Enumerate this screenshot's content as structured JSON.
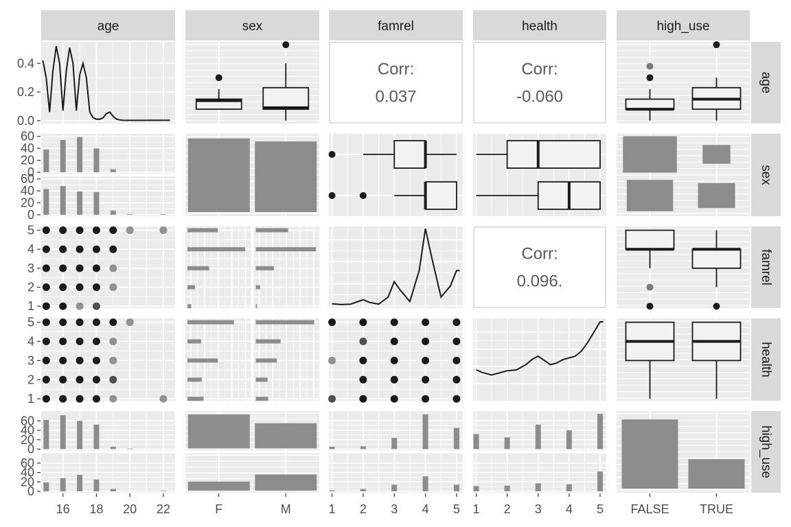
{
  "chart_data": {
    "type": "scatter",
    "title": "",
    "variables": [
      "age",
      "sex",
      "famrel",
      "health",
      "high_use"
    ],
    "column_strips": [
      "age",
      "sex",
      "famrel",
      "health",
      "high_use"
    ],
    "row_strips": [
      "age",
      "sex",
      "famrel",
      "health",
      "high_use"
    ],
    "axes": {
      "age": {
        "range": [
          14.7,
          22.7
        ],
        "ticks": [
          "16",
          "18",
          "20",
          "22"
        ],
        "density_ticks": [
          "0.0",
          "0.2",
          "0.4"
        ],
        "density_range": [
          -0.02,
          0.55
        ]
      },
      "sex": {
        "categories": [
          "F",
          "M"
        ]
      },
      "famrel": {
        "range": [
          0.9,
          5.2
        ],
        "ticks": [
          "1",
          "2",
          "3",
          "4",
          "5"
        ]
      },
      "health": {
        "range": [
          0.9,
          5.2
        ],
        "ticks": [
          "1",
          "2",
          "3",
          "4",
          "5"
        ]
      },
      "high_use": {
        "categories": [
          "FALSE",
          "TRUE"
        ]
      },
      "count_ticks_sex": [
        "0",
        "20",
        "40",
        "60"
      ],
      "count_ticks_high_use": [
        "0",
        "20",
        "40",
        "60"
      ]
    },
    "correlations": [
      {
        "row": "age",
        "col": "famrel",
        "label": "Corr:",
        "value": "0.037"
      },
      {
        "row": "age",
        "col": "health",
        "label": "Corr:",
        "value": "-0.060"
      },
      {
        "row": "famrel",
        "col": "health",
        "label": "Corr:",
        "value": "0.096."
      }
    ],
    "age_density": {
      "x": [
        14.8,
        15,
        15.2,
        15.4,
        15.6,
        15.8,
        16,
        16.2,
        16.4,
        16.6,
        16.8,
        17,
        17.2,
        17.4,
        17.6,
        17.8,
        18,
        18.2,
        18.4,
        18.6,
        18.8,
        19,
        19.2,
        19.4,
        19.6,
        19.8,
        20,
        20.4,
        20.8,
        21.2,
        21.6,
        22,
        22.4
      ],
      "y": [
        0.42,
        0.3,
        0.06,
        0.35,
        0.52,
        0.4,
        0.07,
        0.35,
        0.51,
        0.4,
        0.07,
        0.32,
        0.4,
        0.3,
        0.06,
        0.02,
        0.01,
        0.01,
        0.02,
        0.05,
        0.06,
        0.03,
        0.01,
        0.005,
        0.003,
        0.002,
        0.002,
        0.002,
        0.002,
        0.003,
        0.003,
        0.003,
        0.003
      ]
    },
    "famrel_density": {
      "x": [
        1,
        1.3,
        1.6,
        1.8,
        2,
        2.2,
        2.5,
        2.8,
        3,
        3.2,
        3.5,
        3.8,
        4,
        4.2,
        4.5,
        4.8,
        5,
        5.1
      ],
      "y": [
        0.1,
        0.06,
        0.08,
        0.18,
        0.28,
        0.16,
        0.08,
        0.4,
        1.1,
        0.7,
        0.2,
        1.6,
        3.5,
        2.2,
        0.4,
        0.9,
        1.6,
        1.6
      ]
    },
    "health_density": {
      "x": [
        1,
        1.2,
        1.5,
        1.8,
        2,
        2.3,
        2.6,
        2.8,
        3,
        3.2,
        3.4,
        3.6,
        3.8,
        4,
        4.2,
        4.4,
        4.6,
        4.8,
        5,
        5.1
      ],
      "y": [
        0.8,
        0.65,
        0.5,
        0.65,
        0.75,
        0.8,
        1.1,
        1.4,
        1.6,
        1.35,
        1.1,
        1.2,
        1.4,
        1.5,
        1.6,
        1.9,
        2.4,
        3.0,
        3.6,
        3.6
      ]
    },
    "age_by_sex_hist": {
      "F": {
        "x": [
          15,
          16,
          17,
          18,
          19,
          20
        ],
        "counts": [
          38,
          54,
          59,
          40,
          5,
          0
        ]
      },
      "M": {
        "x": [
          15,
          16,
          17,
          18,
          19,
          20,
          22
        ],
        "counts": [
          43,
          48,
          39,
          38,
          7,
          1,
          1
        ]
      }
    },
    "age_by_high_use_hist": {
      "FALSE": {
        "x": [
          15,
          16,
          17,
          18,
          19,
          20
        ],
        "counts": [
          62,
          72,
          60,
          52,
          5,
          1
        ]
      },
      "TRUE": {
        "x": [
          15,
          16,
          17,
          18,
          19,
          22
        ],
        "counts": [
          19,
          28,
          35,
          25,
          5,
          1
        ]
      }
    },
    "famrel_by_high_use_hist": {
      "FALSE": {
        "x": [
          1,
          2,
          3,
          4,
          5
        ],
        "counts": [
          5,
          6,
          24,
          74,
          45
        ]
      },
      "TRUE": {
        "x": [
          1,
          2,
          3,
          4,
          5
        ],
        "counts": [
          2,
          5,
          14,
          32,
          14
        ]
      }
    },
    "health_by_high_use_hist": {
      "FALSE": {
        "x": [
          1,
          2,
          3,
          4,
          5
        ],
        "counts": [
          32,
          25,
          52,
          40,
          75
        ]
      },
      "TRUE": {
        "x": [
          1,
          2,
          3,
          4,
          5
        ],
        "counts": [
          11,
          12,
          17,
          15,
          42
        ]
      }
    },
    "sex_counts": {
      "F": 195,
      "M": 187
    },
    "sex_by_high_use": {
      "F": {
        "FALSE": 154,
        "TRUE": 41
      },
      "M": {
        "FALSE": 114,
        "TRUE": 73
      }
    },
    "high_use_counts": {
      "FALSE": 268,
      "TRUE": 114
    },
    "famrel_by_sex_counts": {
      "F": [
        6,
        12,
        35,
        93,
        49
      ],
      "M": [
        2,
        7,
        29,
        97,
        52
      ]
    },
    "health_by_sex_counts": {
      "F": [
        26,
        23,
        49,
        22,
        75
      ],
      "M": [
        20,
        19,
        34,
        40,
        94
      ]
    },
    "age_box_by_sex": {
      "F": {
        "lower": 0.08,
        "q1": 0.08,
        "median": 0.14,
        "q3": 0.15,
        "upper": 0.22,
        "outliers": [
          0.3
        ]
      },
      "M": {
        "lower": 0.0,
        "q1": 0.08,
        "median": 0.09,
        "q3": 0.23,
        "upper": 0.4,
        "outliers": [
          0.53
        ]
      }
    },
    "age_box_by_high_use": {
      "FALSE": {
        "lower": 0.0,
        "q1": 0.08,
        "median": 0.08,
        "q3": 0.15,
        "upper": 0.22,
        "outliers": [
          0.3,
          0.38
        ]
      },
      "TRUE": {
        "lower": 0.0,
        "q1": 0.08,
        "median": 0.15,
        "q3": 0.23,
        "upper": 0.3,
        "outliers": [
          0.53
        ]
      }
    },
    "famrel_box_by_sex": {
      "F": {
        "lower": 2,
        "q1": 3,
        "median": 4,
        "q3": 4,
        "upper": 5,
        "outliers": [
          1
        ]
      },
      "M": {
        "lower": 3,
        "q1": 4,
        "median": 4,
        "q3": 5,
        "upper": 5,
        "outliers": [
          1,
          2
        ]
      }
    },
    "health_box_by_sex": {
      "F": {
        "lower": 1,
        "q1": 2,
        "median": 3,
        "q3": 5,
        "upper": 5,
        "outliers": []
      },
      "M": {
        "lower": 1,
        "q1": 3,
        "median": 4,
        "q3": 5,
        "upper": 5,
        "outliers": []
      }
    },
    "famrel_box_by_high_use": {
      "FALSE": {
        "lower": 3,
        "q1": 4,
        "median": 4,
        "q3": 5,
        "upper": 5,
        "outliers": [
          1,
          2
        ]
      },
      "TRUE": {
        "lower": 2,
        "q1": 3,
        "median": 4,
        "q3": 4,
        "upper": 5,
        "outliers": [
          1
        ]
      }
    },
    "health_box_by_high_use": {
      "FALSE": {
        "lower": 1,
        "q1": 3,
        "median": 4,
        "q3": 5,
        "upper": 5,
        "outliers": []
      },
      "TRUE": {
        "lower": 1,
        "q1": 3,
        "median": 4,
        "q3": 5,
        "upper": 5,
        "outliers": []
      }
    },
    "famrel_vs_age_points": [
      {
        "x": 15,
        "y": 1,
        "n": 3
      },
      {
        "x": 16,
        "y": 1,
        "n": 3
      },
      {
        "x": 17,
        "y": 1,
        "n": 1
      },
      {
        "x": 18,
        "y": 1,
        "n": 2
      },
      {
        "x": 15,
        "y": 2,
        "n": 3
      },
      {
        "x": 16,
        "y": 2,
        "n": 3
      },
      {
        "x": 17,
        "y": 2,
        "n": 4
      },
      {
        "x": 18,
        "y": 2,
        "n": 4
      },
      {
        "x": 19,
        "y": 2,
        "n": 1
      },
      {
        "x": 15,
        "y": 3,
        "n": 9
      },
      {
        "x": 16,
        "y": 3,
        "n": 15
      },
      {
        "x": 17,
        "y": 3,
        "n": 17
      },
      {
        "x": 18,
        "y": 3,
        "n": 17
      },
      {
        "x": 19,
        "y": 3,
        "n": 1
      },
      {
        "x": 15,
        "y": 4,
        "n": 40
      },
      {
        "x": 16,
        "y": 4,
        "n": 50
      },
      {
        "x": 17,
        "y": 4,
        "n": 48
      },
      {
        "x": 18,
        "y": 4,
        "n": 40
      },
      {
        "x": 19,
        "y": 4,
        "n": 3
      },
      {
        "x": 15,
        "y": 5,
        "n": 26
      },
      {
        "x": 16,
        "y": 5,
        "n": 29
      },
      {
        "x": 17,
        "y": 5,
        "n": 25
      },
      {
        "x": 18,
        "y": 5,
        "n": 15
      },
      {
        "x": 19,
        "y": 5,
        "n": 5
      },
      {
        "x": 20,
        "y": 5,
        "n": 1
      },
      {
        "x": 22,
        "y": 5,
        "n": 1
      }
    ],
    "health_vs_age_points": [
      {
        "x": 15,
        "y": 1,
        "n": 11
      },
      {
        "x": 16,
        "y": 1,
        "n": 12
      },
      {
        "x": 17,
        "y": 1,
        "n": 13
      },
      {
        "x": 18,
        "y": 1,
        "n": 9
      },
      {
        "x": 19,
        "y": 1,
        "n": 1
      },
      {
        "x": 22,
        "y": 1,
        "n": 1
      },
      {
        "x": 15,
        "y": 2,
        "n": 8
      },
      {
        "x": 16,
        "y": 2,
        "n": 11
      },
      {
        "x": 17,
        "y": 2,
        "n": 12
      },
      {
        "x": 18,
        "y": 2,
        "n": 10
      },
      {
        "x": 19,
        "y": 2,
        "n": 2
      },
      {
        "x": 15,
        "y": 3,
        "n": 17
      },
      {
        "x": 16,
        "y": 3,
        "n": 22
      },
      {
        "x": 17,
        "y": 3,
        "n": 23
      },
      {
        "x": 18,
        "y": 3,
        "n": 17
      },
      {
        "x": 19,
        "y": 3,
        "n": 1
      },
      {
        "x": 15,
        "y": 4,
        "n": 13
      },
      {
        "x": 16,
        "y": 4,
        "n": 18
      },
      {
        "x": 17,
        "y": 4,
        "n": 14
      },
      {
        "x": 18,
        "y": 4,
        "n": 12
      },
      {
        "x": 19,
        "y": 4,
        "n": 1
      },
      {
        "x": 15,
        "y": 5,
        "n": 32
      },
      {
        "x": 16,
        "y": 5,
        "n": 37
      },
      {
        "x": 17,
        "y": 5,
        "n": 33
      },
      {
        "x": 18,
        "y": 5,
        "n": 29
      },
      {
        "x": 19,
        "y": 5,
        "n": 6
      },
      {
        "x": 20,
        "y": 5,
        "n": 1
      }
    ],
    "health_vs_famrel_points": [
      {
        "x": 1,
        "y": 1,
        "n": 2
      },
      {
        "x": 2,
        "y": 1,
        "n": 3
      },
      {
        "x": 3,
        "y": 1,
        "n": 10
      },
      {
        "x": 4,
        "y": 1,
        "n": 22
      },
      {
        "x": 5,
        "y": 1,
        "n": 10
      },
      {
        "x": 2,
        "y": 2,
        "n": 4
      },
      {
        "x": 3,
        "y": 2,
        "n": 7
      },
      {
        "x": 4,
        "y": 2,
        "n": 20
      },
      {
        "x": 5,
        "y": 2,
        "n": 11
      },
      {
        "x": 1,
        "y": 3,
        "n": 1
      },
      {
        "x": 2,
        "y": 3,
        "n": 3
      },
      {
        "x": 3,
        "y": 3,
        "n": 17
      },
      {
        "x": 4,
        "y": 3,
        "n": 42
      },
      {
        "x": 5,
        "y": 3,
        "n": 20
      },
      {
        "x": 2,
        "y": 4,
        "n": 2
      },
      {
        "x": 3,
        "y": 4,
        "n": 11
      },
      {
        "x": 4,
        "y": 4,
        "n": 30
      },
      {
        "x": 5,
        "y": 4,
        "n": 19
      },
      {
        "x": 1,
        "y": 5,
        "n": 5
      },
      {
        "x": 2,
        "y": 5,
        "n": 7
      },
      {
        "x": 3,
        "y": 5,
        "n": 19
      },
      {
        "x": 4,
        "y": 5,
        "n": 76
      },
      {
        "x": 5,
        "y": 5,
        "n": 41
      }
    ],
    "colors": {
      "panel_bg": "#ebebeb",
      "grid": "#ffffff",
      "strip_bg": "#d9d9d9",
      "bar_fill": "#8c8c8c",
      "box_fill": "#f2f2f2",
      "line": "#1a1a1a",
      "point": "#1a1a1a"
    }
  }
}
